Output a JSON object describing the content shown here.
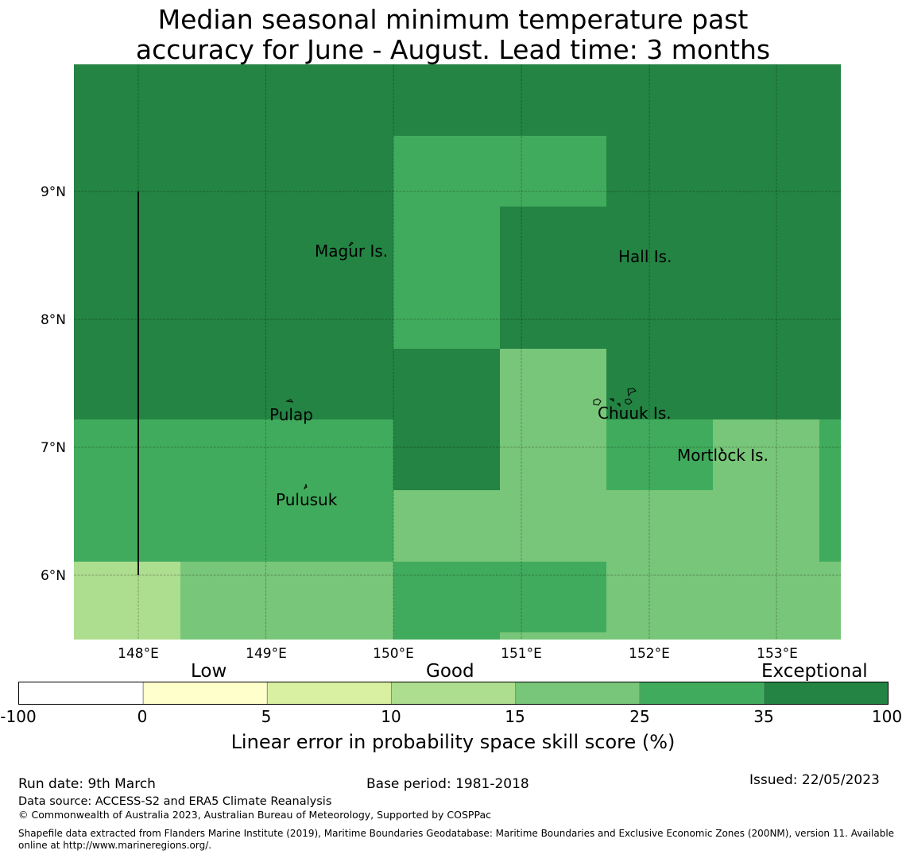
{
  "title": {
    "line1": "Median seasonal minimum temperature past",
    "line2": "accuracy for June - August. Lead time: 3 months"
  },
  "map": {
    "x_ticks": [
      "148°E",
      "149°E",
      "150°E",
      "151°E",
      "152°E",
      "153°E"
    ],
    "y_ticks": [
      "9°N",
      "8°N",
      "7°N",
      "6°N"
    ],
    "places": [
      "Magur Is.",
      "Hall Is.",
      "Pulap",
      "Chuuk Is.",
      "Mortlock Is.",
      "Pulusuk"
    ]
  },
  "colorbar": {
    "categories": [
      "Low",
      "Good",
      "Exceptional"
    ],
    "ticks": [
      "-100",
      "0",
      "5",
      "10",
      "15",
      "25",
      "35",
      "100"
    ],
    "colors": [
      "#ffffff",
      "#ffffcc",
      "#d9f0a3",
      "#addd8e",
      "#78c679",
      "#41ab5d",
      "#238443"
    ],
    "label": "Linear error in probability space skill score (%)"
  },
  "footer": {
    "run_date": "Run date: 9th March",
    "base_period": "Base period: 1981-2018",
    "issued": "Issued: 22/05/2023",
    "data_source": "Data source: ACCESS-S2 and ERA5 Climate Reanalysis",
    "copyright": "© Commonwealth of Australia 2023, Australian Bureau of Meteorology, Supported by COSPPac",
    "shapefile": "Shapefile data extracted from Flanders Marine Institute (2019), Maritime Boundaries Geodatabase: Maritime Boundaries and Exclusive Economic Zones (200NM), version 11. Available online at http://www.marineregions.org/."
  }
}
